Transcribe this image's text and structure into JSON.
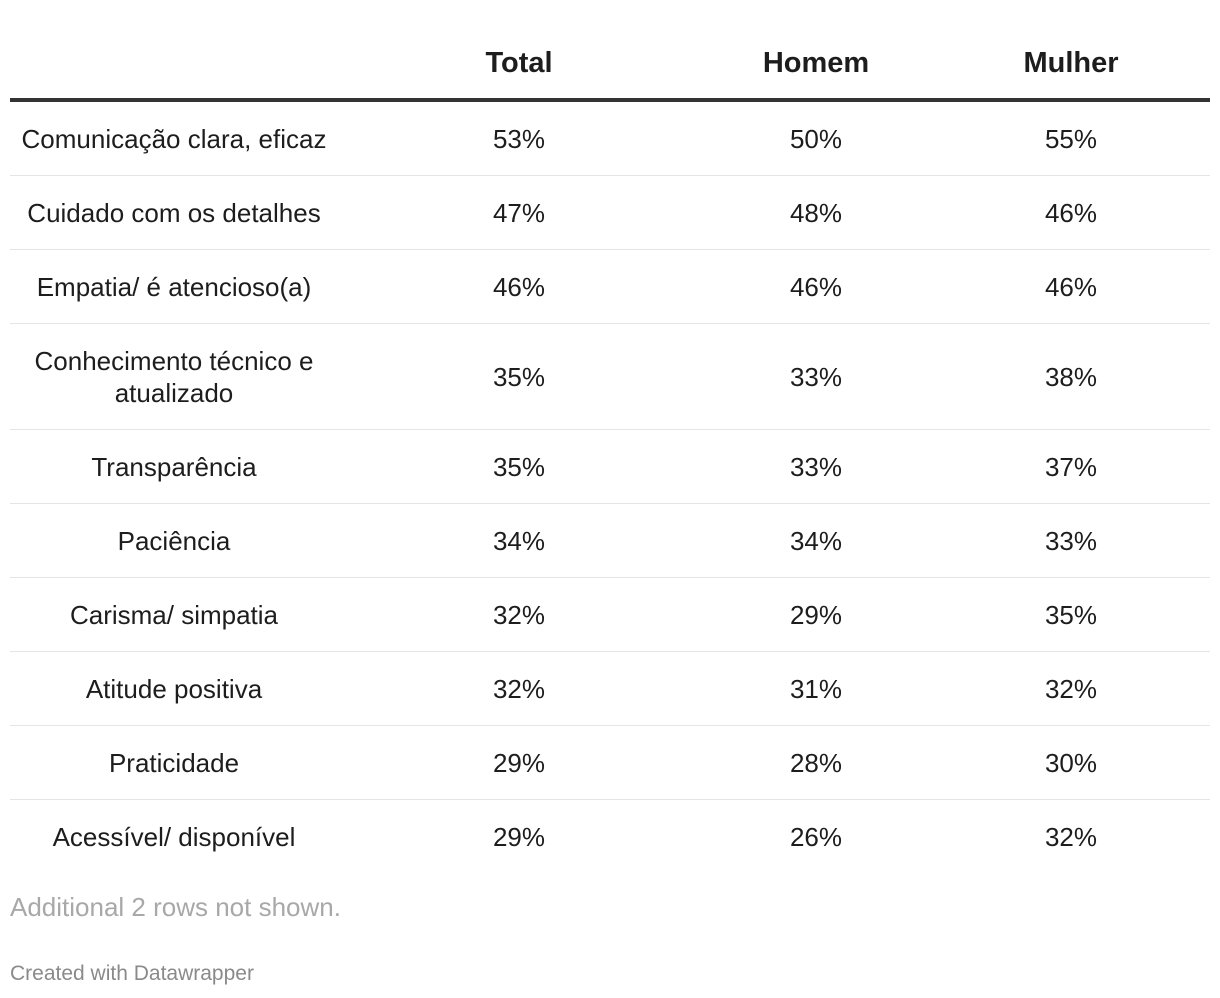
{
  "chart_data": {
    "type": "table",
    "columns": [
      "",
      "Total",
      "Homem",
      "Mulher"
    ],
    "rows": [
      {
        "label": "Comunicação clara, eficaz",
        "values": [
          "53%",
          "50%",
          "55%"
        ]
      },
      {
        "label": "Cuidado com os detalhes",
        "values": [
          "47%",
          "48%",
          "46%"
        ]
      },
      {
        "label": "Empatia/ é atencioso(a)",
        "values": [
          "46%",
          "46%",
          "46%"
        ]
      },
      {
        "label": "Conhecimento técnico e atualizado",
        "values": [
          "35%",
          "33%",
          "38%"
        ]
      },
      {
        "label": "Transparência",
        "values": [
          "35%",
          "33%",
          "37%"
        ]
      },
      {
        "label": "Paciência",
        "values": [
          "34%",
          "34%",
          "33%"
        ]
      },
      {
        "label": "Carisma/ simpatia",
        "values": [
          "32%",
          "29%",
          "35%"
        ]
      },
      {
        "label": "Atitude positiva",
        "values": [
          "32%",
          "31%",
          "32%"
        ]
      },
      {
        "label": "Praticidade",
        "values": [
          "29%",
          "28%",
          "30%"
        ]
      },
      {
        "label": "Acessível/ disponível",
        "values": [
          "29%",
          "26%",
          "32%"
        ]
      }
    ],
    "note": "Additional 2 rows not shown.",
    "credit": "Created with Datawrapper"
  }
}
